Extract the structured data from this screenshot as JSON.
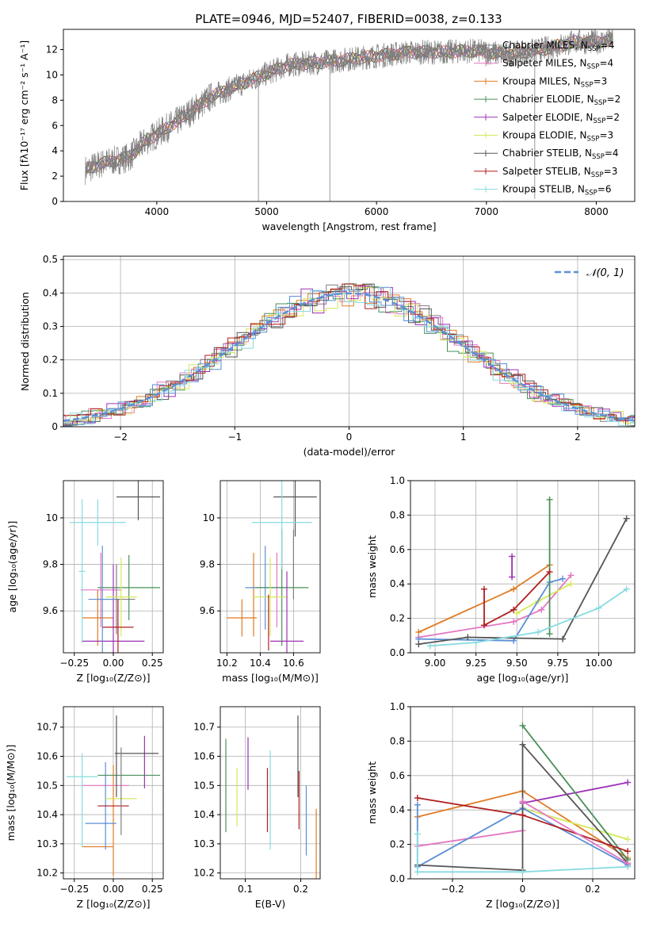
{
  "colors": {
    "c_miles": "#7f7f7f",
    "s_miles": "#e377c2",
    "k_miles": "#e07b25",
    "c_elodie": "#4a8f5a",
    "s_elodie": "#9b32b5",
    "k_elodie": "#d6e85a",
    "c_stelib": "#555555",
    "s_stelib": "#b01e1e",
    "k_stelib": "#86dbe0",
    "normal": "#5b8fd6",
    "extra": "#5b8fd6"
  },
  "figure": {
    "title": "PLATE=0946, MJD=52407, FIBERID=0038, z=0.133"
  },
  "chart_data": [
    {
      "id": "spectrum",
      "type": "line",
      "xlabel": "wavelength [Angstrom, rest frame]",
      "ylabel": "Flux [fλ10⁻¹⁷ erg cm⁻² s⁻¹ A⁻¹]",
      "xlim": [
        3150,
        8350
      ],
      "ylim": [
        0,
        13.6
      ],
      "xticks": [
        4000,
        5000,
        6000,
        7000,
        8000
      ],
      "yticks": [
        0,
        2,
        4,
        6,
        8,
        10,
        12
      ],
      "series": [
        {
          "name": "Chabrier MILES, N_SSP=4",
          "key": "c_miles"
        },
        {
          "name": "Salpeter MILES, N_SSP=4",
          "key": "s_miles"
        },
        {
          "name": "Kroupa MILES, N_SSP=3",
          "key": "k_miles"
        },
        {
          "name": "Chabrier ELODIE, N_SSP=2",
          "key": "c_elodie"
        },
        {
          "name": "Salpeter ELODIE, N_SSP=2",
          "key": "s_elodie"
        },
        {
          "name": "Kroupa ELODIE, N_SSP=3",
          "key": "k_elodie"
        },
        {
          "name": "Chabrier STELIB, N_SSP=4",
          "key": "c_stelib"
        },
        {
          "name": "Salpeter STELIB, N_SSP=3",
          "key": "s_stelib"
        },
        {
          "name": "Kroupa STELIB, N_SSP=6",
          "key": "k_stelib"
        }
      ],
      "continuum": [
        [
          3350,
          2.5
        ],
        [
          3500,
          3.0
        ],
        [
          3650,
          3.3
        ],
        [
          3750,
          3.5
        ],
        [
          3900,
          4.8
        ],
        [
          4000,
          5.3
        ],
        [
          4200,
          6.4
        ],
        [
          4500,
          8.3
        ],
        [
          4800,
          9.4
        ],
        [
          5000,
          10.1
        ],
        [
          5200,
          10.8
        ],
        [
          5500,
          11.0
        ],
        [
          5800,
          11.3
        ],
        [
          6000,
          11.5
        ],
        [
          6300,
          11.8
        ],
        [
          6600,
          11.8
        ],
        [
          6900,
          11.9
        ],
        [
          7200,
          11.6
        ],
        [
          7500,
          12.0
        ],
        [
          7800,
          12.6
        ],
        [
          8000,
          12.6
        ],
        [
          8150,
          12.8
        ]
      ],
      "data_spikes": [
        [
          4925,
          0
        ],
        [
          5575,
          0
        ],
        [
          7440,
          0.2
        ]
      ]
    },
    {
      "id": "residuals",
      "type": "step",
      "xlabel": "(data-model)/error",
      "ylabel": "Normed distribution",
      "xlim": [
        -2.5,
        2.5
      ],
      "ylim": [
        0,
        0.51
      ],
      "xticks": [
        -2,
        -1,
        0,
        1,
        2
      ],
      "yticks": [
        0,
        0.1,
        0.2,
        0.3,
        0.4,
        0.5
      ],
      "legend": "𝒩(0, 1)"
    },
    {
      "id": "age_vs_z",
      "type": "errorbar",
      "xlabel": "Z [log₁₀(Z/Z⊙)]",
      "ylabel": "age  [log₁₀(age/yr)]",
      "xlim": [
        -0.32,
        0.32
      ],
      "ylim": [
        9.42,
        10.16
      ],
      "xticks": [
        -0.25,
        0.0,
        0.25
      ],
      "yticks": [
        9.6,
        9.8,
        10.0
      ],
      "points": [
        {
          "key": "c_miles",
          "x": 0.02,
          "xe": 0.12,
          "y": 9.65,
          "ye": 0.15
        },
        {
          "key": "s_miles",
          "x": -0.08,
          "xe": 0.13,
          "y": 9.69,
          "ye": 0.16
        },
        {
          "key": "k_miles",
          "x": -0.1,
          "xe": 0.1,
          "y": 9.57,
          "ye": 0.12
        },
        {
          "key": "c_elodie",
          "x": 0.1,
          "xe": 0.2,
          "y": 9.7,
          "ye": 0.14
        },
        {
          "key": "s_elodie",
          "x": 0.0,
          "xe": 0.2,
          "y": 9.47,
          "ye": 0.33
        },
        {
          "key": "k_elodie",
          "x": 0.05,
          "xe": 0.1,
          "y": 9.66,
          "ye": 0.17
        },
        {
          "key": "c_stelib",
          "x": 0.16,
          "xe": 0.14,
          "y": 10.09,
          "ye": 0.1
        },
        {
          "key": "s_stelib",
          "x": 0.03,
          "xe": 0.1,
          "y": 9.53,
          "ye": 0.12
        },
        {
          "key": "k_stelib",
          "x": -0.1,
          "xe": 0.18,
          "y": 9.98,
          "ye": 0.1
        },
        {
          "key": "k_stelib",
          "x": -0.2,
          "xe": 0.02,
          "y": 9.77,
          "ye": 0.31
        },
        {
          "key": "extra",
          "x": -0.07,
          "xe": 0.09,
          "y": 9.65,
          "ye": 0.23
        }
      ]
    },
    {
      "id": "age_vs_mass",
      "type": "errorbar",
      "xlabel": "mass [log₁₀(M/M⊙)]",
      "ylabel": "",
      "xlim": [
        10.16,
        10.76
      ],
      "ylim": [
        9.42,
        10.16
      ],
      "xticks": [
        10.2,
        10.4,
        10.6
      ],
      "yticks": [
        9.6,
        9.8,
        10.0
      ],
      "points": [
        {
          "key": "k_miles",
          "x": 10.29,
          "xe": 0.09,
          "y": 9.57,
          "ye": 0.08
        },
        {
          "key": "k_miles",
          "x": 10.36,
          "xe": 0.0,
          "y": 9.67,
          "ye": 0.18
        },
        {
          "key": "s_miles",
          "x": 10.5,
          "xe": 0.0,
          "y": 9.69,
          "ye": 0.16
        },
        {
          "key": "extra",
          "x": 10.43,
          "xe": 0.12,
          "y": 9.7,
          "ye": 0.18
        },
        {
          "key": "c_elodie",
          "x": 10.53,
          "xe": 0.16,
          "y": 9.7,
          "ye": 0.25
        },
        {
          "key": "k_elodie",
          "x": 10.46,
          "xe": 0.1,
          "y": 9.66,
          "ye": 0.17
        },
        {
          "key": "s_elodie",
          "x": 10.56,
          "xe": 0.1,
          "y": 9.47,
          "ye": 0.3
        },
        {
          "key": "s_stelib",
          "x": 10.45,
          "xe": 0.0,
          "y": 9.55,
          "ye": 0.12
        },
        {
          "key": "c_stelib",
          "x": 10.61,
          "xe": 0.13,
          "y": 10.09,
          "ye": 0.0
        },
        {
          "key": "c_stelib",
          "x": 10.61,
          "xe": 0.0,
          "y": 10.07,
          "ye": 0.15
        },
        {
          "key": "k_stelib",
          "x": 10.53,
          "xe": 0.18,
          "y": 9.98,
          "ye": 0.2
        },
        {
          "key": "c_miles",
          "x": 10.6,
          "xe": 0.0,
          "y": 9.8,
          "ye": 0.15
        }
      ]
    },
    {
      "id": "mw_vs_age",
      "type": "line",
      "xlabel": "age  [log₁₀(age/yr)]",
      "ylabel": "mass weight",
      "xlim": [
        8.85,
        10.22
      ],
      "ylim": [
        0,
        1.0
      ],
      "xticks": [
        9.0,
        9.25,
        9.5,
        9.75,
        10.0
      ],
      "yticks": [
        0.0,
        0.2,
        0.4,
        0.6,
        0.8,
        1.0
      ],
      "series": [
        {
          "key": "k_miles",
          "pts": [
            [
              8.9,
              0.12
            ],
            [
              9.48,
              0.37
            ],
            [
              9.7,
              0.51
            ]
          ]
        },
        {
          "key": "s_miles",
          "pts": [
            [
              8.9,
              0.09
            ],
            [
              9.48,
              0.18
            ],
            [
              9.65,
              0.25
            ],
            [
              9.83,
              0.45
            ]
          ]
        },
        {
          "key": "s_elodie",
          "pts": [
            [
              9.47,
              0.44
            ],
            [
              9.47,
              0.56
            ]
          ]
        },
        {
          "key": "k_elodie",
          "pts": [
            [
              9.5,
              0.23
            ],
            [
              9.63,
              0.3
            ],
            [
              9.83,
              0.4
            ]
          ]
        },
        {
          "key": "extra",
          "pts": [
            [
              8.9,
              0.08
            ],
            [
              9.48,
              0.07
            ],
            [
              9.7,
              0.41
            ],
            [
              9.78,
              0.43
            ]
          ]
        },
        {
          "key": "c_elodie",
          "pts": [
            [
              9.7,
              0.11
            ],
            [
              9.7,
              0.89
            ]
          ]
        },
        {
          "key": "c_stelib",
          "pts": [
            [
              8.9,
              0.05
            ],
            [
              9.2,
              0.09
            ],
            [
              9.78,
              0.08
            ],
            [
              10.17,
              0.78
            ]
          ]
        },
        {
          "key": "s_stelib",
          "pts": [
            [
              9.3,
              0.37
            ],
            [
              9.3,
              0.16
            ],
            [
              9.48,
              0.25
            ],
            [
              9.7,
              0.47
            ]
          ]
        },
        {
          "key": "k_stelib",
          "pts": [
            [
              8.97,
              0.04
            ],
            [
              9.25,
              0.06
            ],
            [
              9.63,
              0.12
            ],
            [
              10.0,
              0.26
            ],
            [
              10.17,
              0.37
            ]
          ]
        }
      ]
    },
    {
      "id": "mass_vs_z",
      "type": "errorbar",
      "xlabel": "Z [log₁₀(Z/Z⊙)]",
      "ylabel": "mass [log₁₀(M/M⊙)]",
      "xlim": [
        -0.32,
        0.32
      ],
      "ylim": [
        10.18,
        10.77
      ],
      "xticks": [
        -0.25,
        0.0,
        0.25
      ],
      "yticks": [
        10.2,
        10.3,
        10.4,
        10.5,
        10.6,
        10.7
      ],
      "points": [
        {
          "key": "k_miles",
          "x": -0.1,
          "xe": 0.1,
          "y": 10.29,
          "ye": 0.0
        },
        {
          "key": "k_miles",
          "x": 0.0,
          "xe": 0.0,
          "y": 10.38,
          "ye": 0.19
        },
        {
          "key": "s_miles",
          "x": -0.05,
          "xe": 0.15,
          "y": 10.5,
          "ye": 0.0
        },
        {
          "key": "extra",
          "x": -0.08,
          "xe": 0.1,
          "y": 10.37,
          "ye": 0.0
        },
        {
          "key": "extra",
          "x": -0.05,
          "xe": 0.0,
          "y": 10.43,
          "ye": 0.15
        },
        {
          "key": "c_elodie",
          "x": 0.1,
          "xe": 0.2,
          "y": 10.535,
          "ye": 0.0
        },
        {
          "key": "s_elodie",
          "x": 0.2,
          "xe": 0.0,
          "y": 10.58,
          "ye": 0.09
        },
        {
          "key": "k_elodie",
          "x": 0.05,
          "xe": 0.1,
          "y": 10.455,
          "ye": 0.0
        },
        {
          "key": "c_stelib",
          "x": 0.15,
          "xe": 0.14,
          "y": 10.61,
          "ye": 0.0
        },
        {
          "key": "c_stelib",
          "x": 0.02,
          "xe": 0.0,
          "y": 10.6,
          "ye": 0.14
        },
        {
          "key": "s_stelib",
          "x": 0.0,
          "xe": 0.1,
          "y": 10.43,
          "ye": 0.0
        },
        {
          "key": "k_stelib",
          "x": -0.2,
          "xe": 0.1,
          "y": 10.53,
          "ye": 0.0
        },
        {
          "key": "k_stelib",
          "x": -0.2,
          "xe": 0.0,
          "y": 10.45,
          "ye": 0.16
        },
        {
          "key": "c_miles",
          "x": 0.05,
          "xe": 0.0,
          "y": 10.48,
          "ye": 0.15
        }
      ]
    },
    {
      "id": "mass_vs_ebv",
      "type": "errorbar",
      "xlabel": "E(B-V)",
      "ylabel": "",
      "xlim": [
        0.055,
        0.235
      ],
      "ylim": [
        10.18,
        10.77
      ],
      "xticks": [
        0.1,
        0.2
      ],
      "yticks": [
        10.2,
        10.3,
        10.4,
        10.5,
        10.6,
        10.7
      ],
      "points": [
        {
          "key": "c_elodie",
          "x": 0.065,
          "y": 10.5,
          "ye": 0.16
        },
        {
          "key": "k_elodie",
          "x": 0.085,
          "y": 10.46,
          "ye": 0.1
        },
        {
          "key": "s_elodie",
          "x": 0.105,
          "y": 10.575,
          "ye": 0.09
        },
        {
          "key": "k_stelib",
          "x": 0.145,
          "y": 10.45,
          "ye": 0.17
        },
        {
          "key": "s_stelib",
          "x": 0.14,
          "y": 10.45,
          "ye": 0.11
        },
        {
          "key": "c_stelib",
          "x": 0.195,
          "y": 10.6,
          "ye": 0.14
        },
        {
          "key": "s_stelib",
          "x": 0.197,
          "y": 10.45,
          "ye": 0.1
        },
        {
          "key": "extra",
          "x": 0.21,
          "y": 10.38,
          "ye": 0.12
        },
        {
          "key": "k_miles",
          "x": 0.228,
          "y": 10.3,
          "ye": 0.12
        }
      ]
    },
    {
      "id": "mw_vs_z",
      "type": "line",
      "xlabel": "Z [log₁₀(Z/Z⊙)]",
      "ylabel": "mass weight",
      "xlim": [
        -0.32,
        0.32
      ],
      "ylim": [
        0,
        1.0
      ],
      "xticks": [
        -0.2,
        0.0,
        0.2
      ],
      "yticks": [
        0.0,
        0.2,
        0.4,
        0.6,
        0.8,
        1.0
      ],
      "series": [
        {
          "key": "k_miles",
          "pts": [
            [
              -0.3,
              0.36
            ],
            [
              0.0,
              0.51
            ],
            [
              0.3,
              0.12
            ]
          ]
        },
        {
          "key": "s_miles",
          "pts": [
            [
              -0.3,
              0.19
            ],
            [
              0.0,
              0.28
            ]
          ]
        },
        {
          "key": "s_elodie",
          "pts": [
            [
              0.0,
              0.44
            ],
            [
              0.3,
              0.56
            ]
          ]
        },
        {
          "key": "k_elodie",
          "pts": [
            [
              0.0,
              0.41
            ],
            [
              0.3,
              0.23
            ]
          ]
        },
        {
          "key": "c_elodie",
          "pts": [
            [
              0.0,
              0.89
            ],
            [
              0.3,
              0.11
            ]
          ]
        },
        {
          "key": "extra",
          "pts": [
            [
              -0.3,
              0.43
            ],
            [
              -0.3,
              0.07
            ],
            [
              0.0,
              0.41
            ],
            [
              0.3,
              0.08
            ]
          ]
        },
        {
          "key": "c_stelib",
          "pts": [
            [
              -0.3,
              0.08
            ],
            [
              0.0,
              0.05
            ],
            [
              0.0,
              0.78
            ],
            [
              0.3,
              0.09
            ]
          ]
        },
        {
          "key": "s_stelib",
          "pts": [
            [
              -0.3,
              0.47
            ],
            [
              0.0,
              0.37
            ],
            [
              0.3,
              0.16
            ]
          ]
        },
        {
          "key": "k_stelib",
          "pts": [
            [
              -0.3,
              0.26
            ],
            [
              -0.3,
              0.04
            ],
            [
              0.0,
              0.04
            ],
            [
              0.3,
              0.07
            ]
          ]
        },
        {
          "key": "s_miles",
          "pts": [
            [
              0.0,
              0.45
            ],
            [
              0.3,
              0.09
            ]
          ]
        }
      ]
    }
  ]
}
